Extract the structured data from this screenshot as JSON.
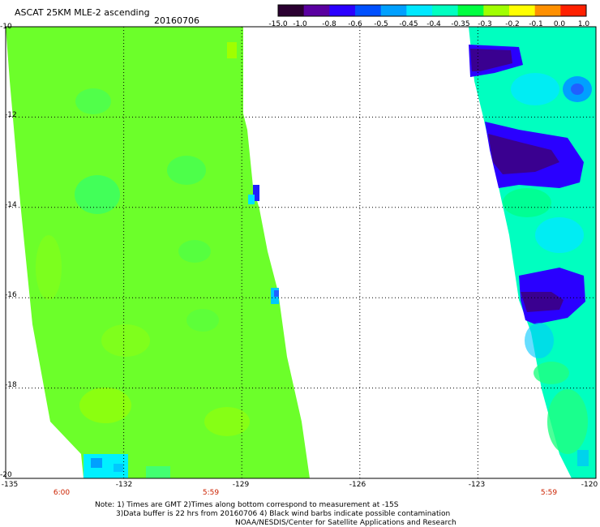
{
  "header": {
    "title": "ASCAT 25KM MLE-2 ascending",
    "date": "20160706"
  },
  "colorbar": {
    "tick_labels": [
      "-15.0",
      "-1.0",
      "-0.8",
      "-0.6",
      "-0.5",
      "-0.45",
      "-0.4",
      "-0.35",
      "-0.3",
      "-0.2",
      "-0.1",
      "0.0",
      "1.0"
    ],
    "colors": [
      "#2a0030",
      "#5a00a0",
      "#2a00ff",
      "#0050ff",
      "#00a0ff",
      "#00e8ff",
      "#00ffc0",
      "#00ff40",
      "#a0ff00",
      "#ffff00",
      "#ff9000",
      "#ff2000"
    ]
  },
  "map": {
    "y_labels": [
      "-10",
      "-12",
      "-14",
      "-16",
      "-18",
      "-20"
    ],
    "x_labels": [
      "-135",
      "-132",
      "-129",
      "-126",
      "-123",
      "-120"
    ],
    "time_labels": [
      "6:00",
      "5:59",
      "5:59"
    ],
    "lat_range": [
      -20,
      -10
    ],
    "lon_range": [
      -135,
      -120
    ]
  },
  "notes": {
    "line1": "Note: 1) Times are GMT 2)Times along bottom correspond to measurement at -15S",
    "line2": "3)Data buffer is 22 hrs from 20160706 4) Black wind barbs indicate possible contamination",
    "line3": "NOAA/NESDIS/Center for Satellite Applications and Research"
  }
}
